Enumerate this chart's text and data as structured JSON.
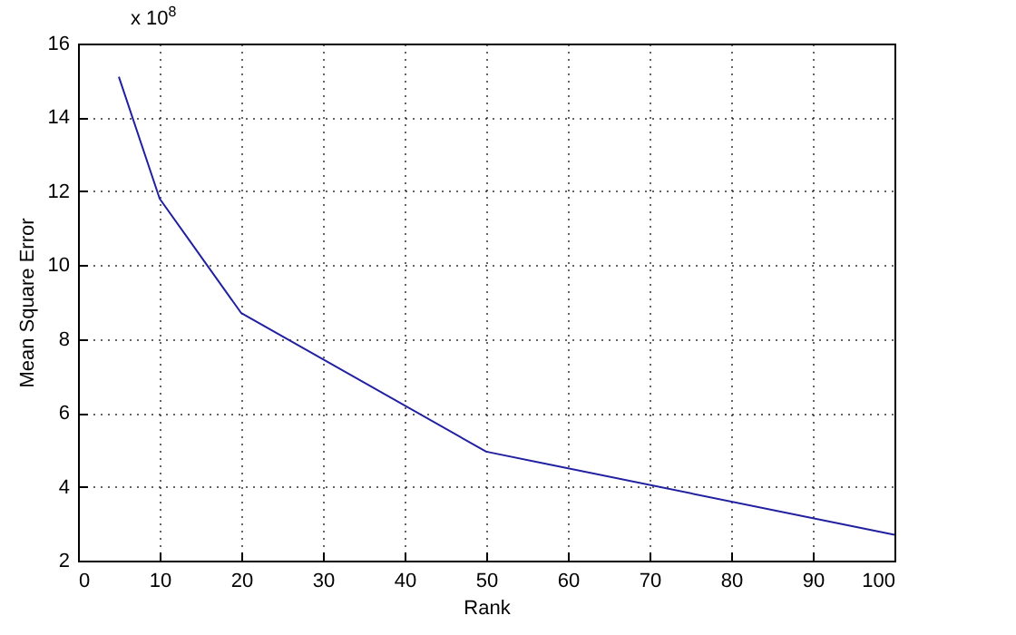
{
  "chart_data": {
    "type": "line",
    "xlabel": "Rank",
    "ylabel": "Mean Square Error",
    "annotations": [
      "x 10$^{8}$"
    ],
    "x": [
      5,
      10,
      20,
      50,
      100
    ],
    "series": [
      {
        "color": "#2020a0",
        "values": [
          15.1,
          11.8,
          8.7,
          4.95,
          2.7
        ]
      }
    ],
    "xlim": [
      0,
      100
    ],
    "xticks": [
      0,
      10,
      20,
      30,
      40,
      50,
      60,
      70,
      80,
      90,
      100
    ],
    "ylim": [
      2,
      16
    ],
    "yticks": [
      2,
      4,
      6,
      8,
      10,
      12,
      14,
      16
    ],
    "grid": true,
    "marker": "none",
    "line_style": "solid"
  }
}
